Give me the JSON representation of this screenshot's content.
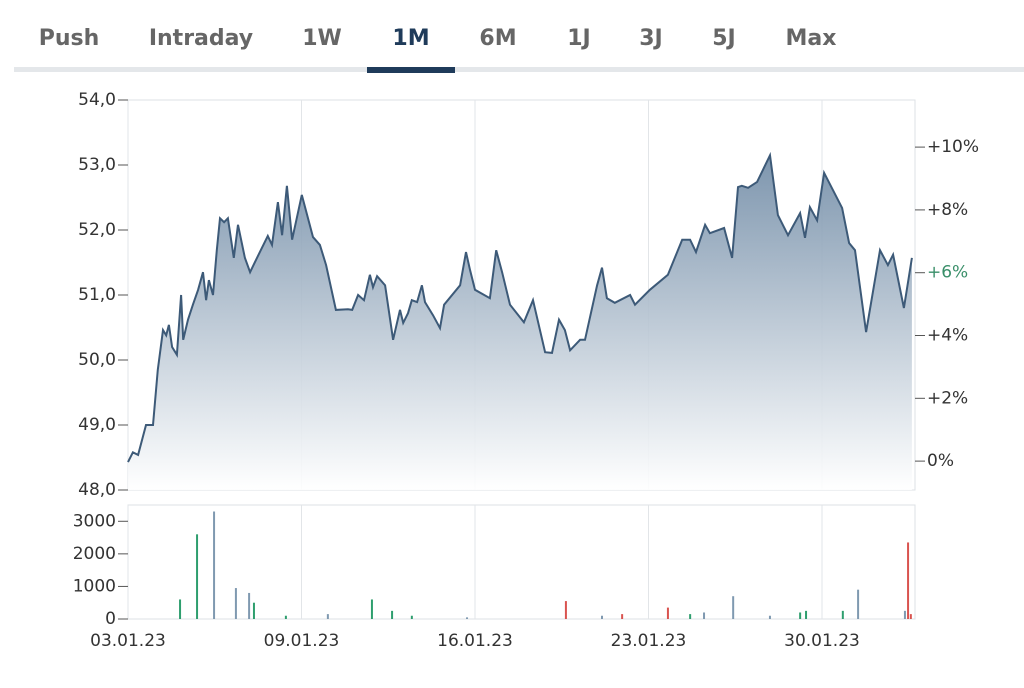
{
  "tabs": {
    "items": [
      "Push",
      "Intraday",
      "1W",
      "1M",
      "6M",
      "1J",
      "3J",
      "5J",
      "Max"
    ],
    "active": 3
  },
  "chart_data": [
    {
      "type": "area",
      "color": "#3d5a78",
      "x": [
        0,
        0.14,
        0.29,
        0.52,
        0.72,
        0.86,
        1.01,
        1.1,
        1.18,
        1.27,
        1.41,
        1.53,
        1.59,
        1.73,
        1.87,
        2.02,
        2.16,
        2.25,
        2.33,
        2.45,
        2.56,
        2.65,
        2.77,
        2.88,
        3.05,
        3.17,
        3.37,
        3.52,
        3.69,
        4.03,
        4.15,
        4.32,
        4.44,
        4.58,
        4.73,
        5.01,
        5.33,
        5.53,
        5.71,
        5.99,
        6.34,
        6.46,
        6.63,
        6.8,
        6.97,
        7.06,
        7.18,
        7.41,
        7.64,
        7.84,
        7.93,
        8.07,
        8.18,
        8.33,
        8.47,
        8.56,
        8.79,
        8.99,
        9.11,
        9.57,
        9.74,
        9.86,
        10.0,
        10.43,
        10.61,
        10.78,
        11.01,
        11.41,
        11.67,
        12.02,
        12.22,
        12.42,
        12.59,
        12.74,
        13.03,
        13.17,
        13.52,
        13.66,
        13.8,
        14.03,
        14.47,
        14.61,
        15.04,
        15.56,
        15.97,
        16.2,
        16.37,
        16.63,
        16.77,
        17.18,
        17.41,
        17.58,
        17.69,
        17.87,
        18.13,
        18.5,
        18.73,
        19.02,
        19.37,
        19.51,
        19.65,
        19.86,
        20.06,
        20.58,
        20.78,
        20.95,
        21.27,
        21.67,
        21.9,
        22.05,
        22.36,
        22.59
      ],
      "values": [
        48.43,
        48.58,
        48.54,
        49.0,
        49.0,
        49.85,
        50.46,
        50.38,
        50.54,
        50.2,
        50.08,
        51.0,
        50.31,
        50.62,
        50.85,
        51.08,
        51.35,
        50.92,
        51.23,
        51.0,
        51.69,
        52.18,
        52.12,
        52.18,
        51.57,
        52.08,
        51.57,
        51.35,
        51.54,
        51.91,
        51.77,
        52.43,
        51.92,
        52.68,
        51.85,
        52.54,
        51.89,
        51.77,
        51.46,
        50.77,
        50.78,
        50.77,
        51.0,
        50.92,
        51.31,
        51.12,
        51.29,
        51.15,
        50.31,
        50.77,
        50.57,
        50.72,
        50.92,
        50.89,
        51.15,
        50.89,
        50.69,
        50.49,
        50.85,
        51.15,
        51.66,
        51.38,
        51.08,
        50.95,
        51.69,
        51.35,
        50.85,
        50.58,
        50.92,
        50.12,
        50.11,
        50.62,
        50.46,
        50.15,
        50.31,
        50.31,
        51.15,
        51.42,
        50.95,
        50.88,
        51.0,
        50.85,
        51.08,
        51.31,
        51.85,
        51.85,
        51.66,
        52.08,
        51.95,
        52.03,
        51.57,
        52.66,
        52.68,
        52.65,
        52.74,
        53.15,
        52.23,
        51.92,
        52.26,
        51.88,
        52.35,
        52.15,
        52.88,
        52.34,
        51.8,
        51.69,
        50.43,
        51.69,
        51.46,
        51.62,
        50.8,
        51.57
      ],
      "xlim": [
        0,
        22.68
      ],
      "xticks": [
        0,
        5,
        10,
        15,
        20
      ],
      "ylim": [
        48,
        54
      ],
      "yticks": [
        {
          "value": 48,
          "label": "48,0"
        },
        {
          "value": 49,
          "label": "49,0"
        },
        {
          "value": 50,
          "label": "50,0"
        },
        {
          "value": 51,
          "label": "51,0"
        },
        {
          "value": 52,
          "label": "52,0"
        },
        {
          "value": 53,
          "label": "53,0"
        },
        {
          "value": 54,
          "label": "54,0"
        }
      ],
      "y2lim": [
        -0.92,
        11.5
      ],
      "y2ticks": [
        {
          "value": 0,
          "label": "0%"
        },
        {
          "value": 2,
          "label": "+2%"
        },
        {
          "value": 4,
          "label": "+4%"
        },
        {
          "value": 6,
          "label": "+6%"
        },
        {
          "value": 8,
          "label": "+8%"
        },
        {
          "value": 10,
          "label": "+10%"
        }
      ],
      "y2tick_highlight": 3,
      "grid": true
    },
    {
      "type": "bar",
      "x": [
        1.5,
        1.99,
        2.48,
        3.11,
        3.49,
        3.63,
        4.55,
        5.76,
        7.03,
        7.61,
        8.18,
        9.77,
        12.62,
        13.66,
        14.24,
        15.56,
        16.2,
        16.6,
        17.44,
        18.5,
        19.37,
        19.54,
        20.6,
        21.04,
        22.39,
        22.48,
        22.56
      ],
      "values": [
        600,
        2600,
        3300,
        950,
        800,
        500,
        100,
        150,
        600,
        250,
        100,
        50,
        550,
        100,
        150,
        350,
        150,
        200,
        700,
        100,
        200,
        250,
        250,
        900,
        250,
        2350,
        150
      ],
      "colors": [
        "#2e9e6e",
        "#2e9e6e",
        "#7f99b0",
        "#7f99b0",
        "#7f99b0",
        "#2e9e6e",
        "#2e9e6e",
        "#7f99b0",
        "#2e9e6e",
        "#2e9e6e",
        "#2e9e6e",
        "#7f99b0",
        "#d9534f",
        "#7f99b0",
        "#d9534f",
        "#d9534f",
        "#2e9e6e",
        "#7f99b0",
        "#7f99b0",
        "#7f99b0",
        "#2e9e6e",
        "#2e9e6e",
        "#2e9e6e",
        "#7f99b0",
        "#7f99b0",
        "#d9534f",
        "#d9534f"
      ],
      "xlim": [
        0,
        22.68
      ],
      "xticks": [
        {
          "value": 0,
          "label": "03.01.23"
        },
        {
          "value": 5,
          "label": "09.01.23"
        },
        {
          "value": 10,
          "label": "16.01.23"
        },
        {
          "value": 15,
          "label": "23.01.23"
        },
        {
          "value": 20,
          "label": "30.01.23"
        }
      ],
      "ylim": [
        0,
        3500
      ],
      "yticks": [
        0,
        1000,
        2000,
        3000
      ],
      "grid": true
    }
  ]
}
